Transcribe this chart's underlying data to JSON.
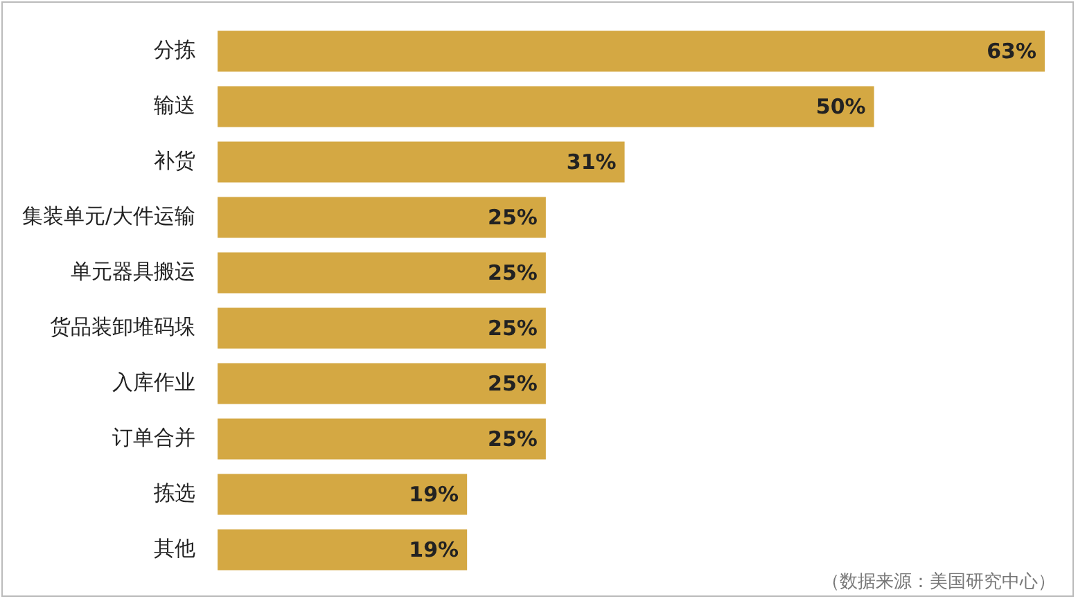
{
  "chart_data": {
    "type": "bar",
    "orientation": "horizontal",
    "categories": [
      "分拣",
      "输送",
      "补货",
      "集装单元/大件运输",
      "单元器具搬运",
      "货品装卸堆码垛",
      "入库作业",
      "订单合并",
      "拣选",
      "其他"
    ],
    "values": [
      63,
      50,
      31,
      25,
      25,
      25,
      25,
      25,
      19,
      19
    ],
    "value_labels": [
      "63%",
      "50%",
      "31%",
      "25%",
      "25%",
      "25%",
      "25%",
      "25%",
      "19%",
      "19%"
    ],
    "color": "#d4a843",
    "tick_labels": "y",
    "annotations": [
      "（数据来源：美国研究中心）"
    ]
  }
}
